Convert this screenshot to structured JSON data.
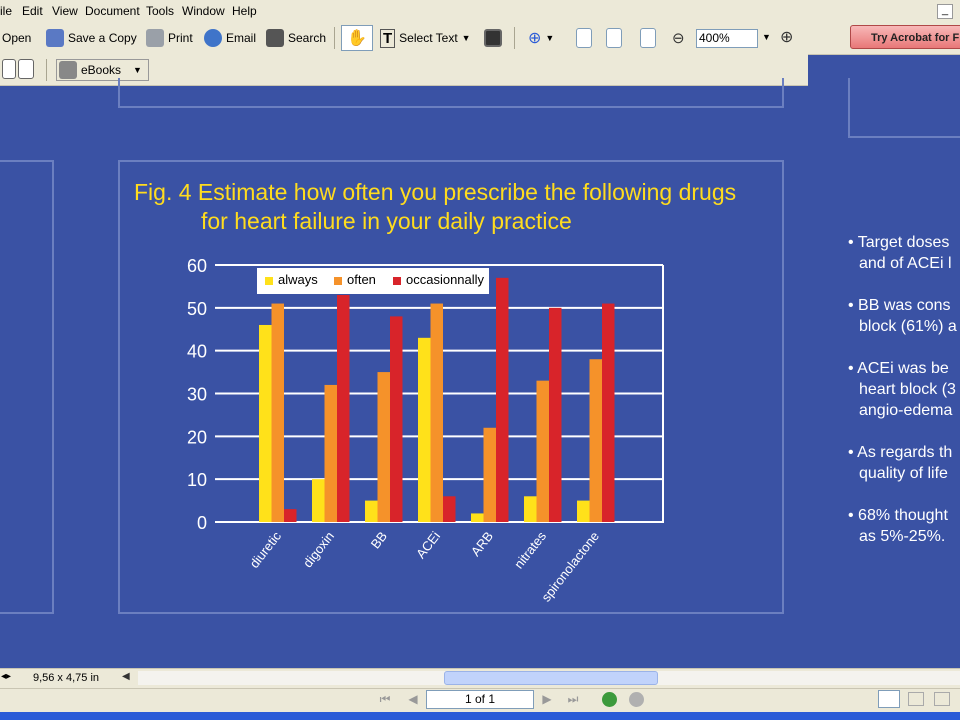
{
  "menu": {
    "items": [
      "ile",
      "Edit",
      "View",
      "Document",
      "Tools",
      "Window",
      "Help"
    ]
  },
  "toolbar": {
    "open_label": "Open",
    "save_copy_label": "Save a Copy",
    "print_label": "Print",
    "email_label": "Email",
    "search_label": "Search",
    "select_text_label": "Select Text",
    "zoom_value": "400%",
    "acrobat_label": "Try Acrobat for Free",
    "ebooks_label": "eBooks"
  },
  "slide": {
    "title_line1": "Fig. 4 Estimate how often you prescribe the following drugs",
    "title_line2": "for heart failure in your daily practice",
    "bullets": [
      [
        "• Target doses",
        "and of ACEi l"
      ],
      [
        "• BB was cons",
        "block (61%) a"
      ],
      [
        "• ACEi was be",
        "heart block (3",
        "angio-edema"
      ],
      [
        "• As regards th",
        "quality of life"
      ],
      [
        "• 68% thought",
        "as 5%-25%."
      ]
    ]
  },
  "chart_data": {
    "type": "bar",
    "categories": [
      "diuretic",
      "digoxin",
      "BB",
      "ACEi",
      "ARB",
      "nitrates",
      "spironolactone"
    ],
    "series": [
      {
        "name": "always",
        "color": "#ffe11a",
        "values": [
          46,
          10,
          5,
          43,
          2,
          6,
          5
        ]
      },
      {
        "name": "often",
        "color": "#f5922a",
        "values": [
          51,
          32,
          35,
          51,
          22,
          33,
          38
        ]
      },
      {
        "name": "occasionnally",
        "color": "#d8242a",
        "values": [
          3,
          53,
          48,
          6,
          57,
          50,
          51
        ]
      }
    ],
    "ylim": [
      0,
      60
    ],
    "yticks": [
      0,
      10,
      20,
      30,
      40,
      50,
      60
    ],
    "grid": true,
    "legend": "top"
  },
  "status": {
    "page_size": "9,56 x 4,75 in",
    "page_indicator": "1 of 1"
  }
}
